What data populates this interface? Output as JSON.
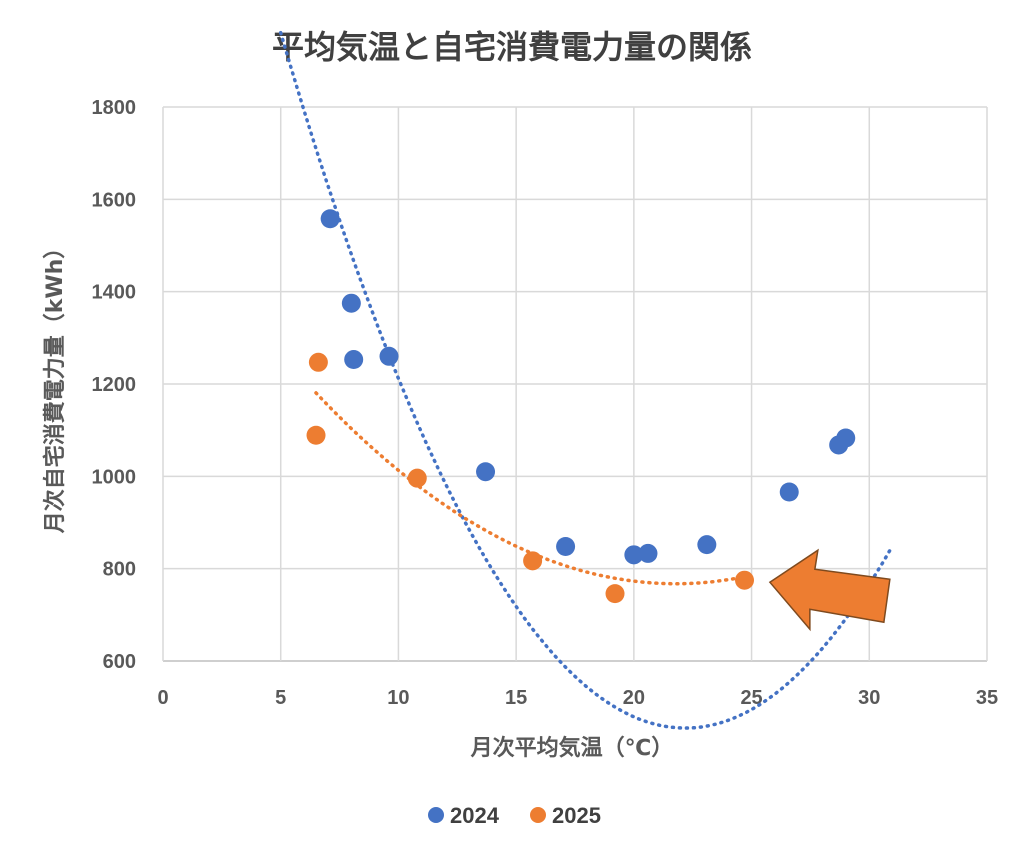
{
  "chart_data": {
    "type": "scatter",
    "title": "平均気温と自宅消費電力量の関係",
    "xlabel": "月次平均気温（℃）",
    "ylabel": "月次自宅消費電力量（kWh）",
    "xlim": [
      0,
      35
    ],
    "ylim": [
      600,
      1800
    ],
    "x_ticks": [
      0,
      5,
      10,
      15,
      20,
      25,
      30,
      35
    ],
    "y_ticks": [
      600,
      800,
      1000,
      1200,
      1400,
      1600,
      1800
    ],
    "grid": true,
    "legend_position": "bottom",
    "series": [
      {
        "name": "2024",
        "color": "#4472c4",
        "points": [
          {
            "x": 7.1,
            "y": 1558
          },
          {
            "x": 8.0,
            "y": 1375
          },
          {
            "x": 8.1,
            "y": 1253
          },
          {
            "x": 9.6,
            "y": 1260
          },
          {
            "x": 13.7,
            "y": 1010
          },
          {
            "x": 17.1,
            "y": 848
          },
          {
            "x": 20.0,
            "y": 830
          },
          {
            "x": 20.6,
            "y": 833
          },
          {
            "x": 23.1,
            "y": 852
          },
          {
            "x": 26.6,
            "y": 966
          },
          {
            "x": 28.7,
            "y": 1068
          },
          {
            "x": 29.0,
            "y": 1083
          }
        ],
        "trendline": {
          "type": "polynomial",
          "x_range": [
            5.0,
            30.9
          ],
          "coefficients": [
            2965,
            -226.3,
            5.1
          ]
        }
      },
      {
        "name": "2025",
        "color": "#ed7d31",
        "points": [
          {
            "x": 6.6,
            "y": 1247
          },
          {
            "x": 6.5,
            "y": 1089
          },
          {
            "x": 10.8,
            "y": 996
          },
          {
            "x": 15.7,
            "y": 817
          },
          {
            "x": 19.2,
            "y": 746
          },
          {
            "x": 24.7,
            "y": 775
          }
        ],
        "trendline": {
          "type": "polynomial",
          "x_range": [
            6.5,
            24.8
          ],
          "coefficients": [
            1607,
            -77.1,
            1.77
          ]
        }
      }
    ],
    "annotations": [
      {
        "type": "arrow",
        "direction": "left",
        "color": "#ed7d31",
        "points_to": {
          "x": 24.8,
          "y": 775
        }
      }
    ]
  }
}
